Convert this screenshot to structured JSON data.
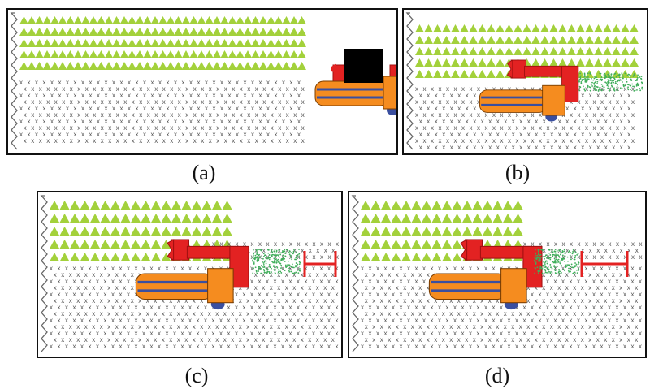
{
  "panels": [
    {
      "id": "a",
      "caption": "(a)",
      "machine_position": "outside-field-right",
      "cab": "black",
      "unloader": false,
      "grain_stream": false,
      "trailer": false
    },
    {
      "id": "b",
      "caption": "(b)",
      "machine_position": "harvesting",
      "cab": "red",
      "unloader": true,
      "grain_stream": true,
      "trailer": false
    },
    {
      "id": "c",
      "caption": "(c)",
      "machine_position": "harvesting",
      "cab": "red",
      "unloader": true,
      "grain_stream": true,
      "trailer": true
    },
    {
      "id": "d",
      "caption": "(d)",
      "machine_position": "harvesting",
      "cab": "red",
      "unloader": true,
      "grain_stream": true,
      "trailer": true
    }
  ],
  "colors": {
    "crop": "#a3d13b",
    "stubble": "#555555",
    "header": "#e32222",
    "body": "#f58c1f",
    "tracks": "#3a4fa0",
    "cab_black": "#000000",
    "grain": "#3fae5a",
    "trailer": "#e32222",
    "field_edge": "#666666"
  },
  "icons": {
    "crop": "triangle-crop-icon",
    "stubble": "x-stubble-icon",
    "machine": "combine-harvester-icon",
    "edge": "zigzag-field-edge-icon",
    "trailer": "trailer-bar-icon"
  }
}
